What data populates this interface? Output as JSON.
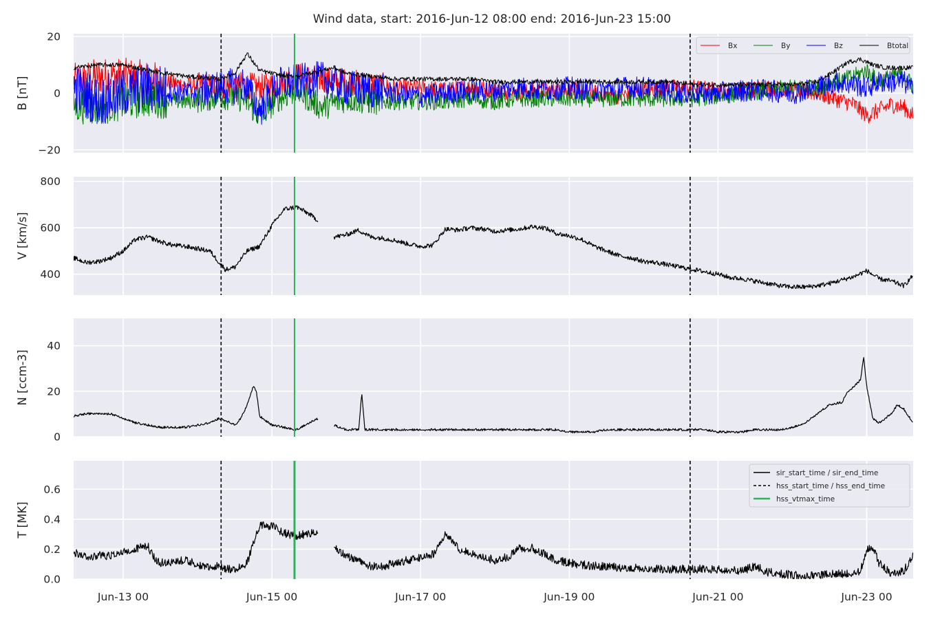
{
  "title": "Wind data, start: 2016-Jun-12 08:00  end: 2016-Jun-23 15:00",
  "chart_data": {
    "type": "line",
    "title": "Wind data, start: 2016-Jun-12 08:00  end: 2016-Jun-23 15:00",
    "x_range_hours_from_start": [
      0,
      271
    ],
    "x_tick_labels": [
      "Jun-13 00",
      "Jun-15 00",
      "Jun-17 00",
      "Jun-19 00",
      "Jun-21 00",
      "Jun-23 00"
    ],
    "x_tick_hours": [
      16,
      64,
      112,
      160,
      208,
      256
    ],
    "grid": true,
    "background": "#eaeaf2",
    "event_lines": {
      "hss_start_end_dashed_hours": [
        47.6,
        199.0
      ],
      "hss_vtmax_hours": 71.3,
      "hss_vtmax_color": "#2cb35c",
      "dashed_color": "#000000"
    },
    "panels": [
      {
        "id": "B",
        "ylabel": "B [nT]",
        "ylim": [
          -21,
          21
        ],
        "yticks": [
          -20,
          0,
          20
        ],
        "ytick_labels": [
          "−20",
          "0",
          "20"
        ],
        "legend": "top-right",
        "series": [
          {
            "name": "Bx",
            "color": "#ff0000",
            "x": [
              0,
              8,
              16,
              24,
              36,
              47,
              55,
              60,
              66,
              72,
              80,
              88,
              96,
              104,
              112,
              120,
              128,
              136,
              144,
              152,
              160,
              168,
              176,
              184,
              192,
              200,
              208,
              216,
              224,
              232,
              240,
              246,
              252,
              256,
              260,
              264,
              268,
              271
            ],
            "y": [
              4,
              6,
              6,
              5,
              3,
              2,
              3,
              2,
              3,
              6,
              5,
              4,
              3,
              2,
              2,
              1,
              2,
              1,
              0,
              1,
              1,
              0,
              -1,
              1,
              2,
              2,
              1,
              1,
              2,
              1,
              0,
              -2,
              -4,
              -8,
              -6,
              -4,
              -5,
              -8
            ]
          },
          {
            "name": "By",
            "color": "#008000",
            "x": [
              0,
              8,
              16,
              24,
              36,
              47,
              55,
              60,
              66,
              72,
              80,
              88,
              96,
              104,
              112,
              120,
              128,
              136,
              144,
              152,
              160,
              168,
              176,
              184,
              192,
              200,
              208,
              216,
              224,
              232,
              240,
              246,
              252,
              256,
              260,
              264,
              268,
              271
            ],
            "y": [
              -4,
              -5,
              -3,
              -2,
              -3,
              -1,
              -2,
              -8,
              -2,
              1,
              -5,
              -2,
              -3,
              -3,
              -3,
              -3,
              -2,
              -3,
              -2,
              -2,
              -2,
              -2,
              -2,
              -2,
              -2,
              -2,
              -1,
              0,
              1,
              2,
              2,
              4,
              6,
              8,
              4,
              6,
              7,
              2
            ]
          },
          {
            "name": "Bz",
            "color": "#0000ff",
            "x": [
              0,
              8,
              16,
              24,
              36,
              47,
              55,
              60,
              66,
              72,
              80,
              88,
              96,
              104,
              112,
              120,
              128,
              136,
              144,
              152,
              160,
              168,
              176,
              184,
              192,
              200,
              208,
              216,
              224,
              232,
              240,
              246,
              252,
              256,
              260,
              264,
              268,
              271
            ],
            "y": [
              2,
              -3,
              0,
              2,
              0,
              2,
              3,
              -6,
              3,
              4,
              5,
              2,
              1,
              0,
              -1,
              0,
              1,
              1,
              2,
              1,
              2,
              1,
              2,
              2,
              1,
              0,
              0,
              1,
              1,
              0,
              2,
              4,
              3,
              2,
              4,
              4,
              4,
              1
            ]
          },
          {
            "name": "Btotal",
            "color": "#000000",
            "x": [
              0,
              8,
              16,
              24,
              36,
              47,
              52,
              56,
              60,
              64,
              68,
              72,
              80,
              84,
              88,
              96,
              104,
              112,
              120,
              128,
              136,
              144,
              152,
              160,
              168,
              176,
              184,
              192,
              200,
              208,
              216,
              224,
              232,
              240,
              246,
              250,
              254,
              258,
              262,
              266,
              271
            ],
            "y": [
              9,
              10,
              10,
              8,
              6,
              5,
              7,
              14,
              8,
              7,
              6,
              6,
              8,
              9,
              7,
              6,
              5,
              5,
              5,
              5,
              4,
              4,
              4,
              4,
              4,
              4,
              4,
              4,
              3,
              3,
              3,
              3,
              3,
              4,
              8,
              11,
              12,
              10,
              9,
              9,
              9
            ]
          }
        ]
      },
      {
        "id": "V",
        "ylabel": "V [km/s]",
        "ylim": [
          310,
          820
        ],
        "yticks": [
          400,
          600,
          800
        ],
        "ytick_labels": [
          "400",
          "600",
          "800"
        ],
        "series": [
          {
            "name": "",
            "color": "#000000",
            "x": [
              0,
              4,
              8,
              12,
              16,
              20,
              24,
              28,
              32,
              36,
              40,
              44,
              47,
              49,
              52,
              56,
              60,
              64,
              68,
              72,
              76,
              79,
              81,
              84,
              88,
              92,
              96,
              100,
              104,
              108,
              112,
              116,
              120,
              124,
              128,
              132,
              136,
              140,
              144,
              148,
              152,
              156,
              160,
              164,
              168,
              172,
              176,
              180,
              184,
              188,
              192,
              196,
              200,
              204,
              208,
              212,
              216,
              220,
              224,
              228,
              232,
              236,
              240,
              244,
              248,
              252,
              256,
              260,
              264,
              268,
              271
            ],
            "y": [
              470,
              450,
              455,
              470,
              500,
              550,
              560,
              540,
              525,
              520,
              510,
              500,
              450,
              420,
              430,
              500,
              520,
              610,
              680,
              690,
              660,
              630,
              null,
              560,
              570,
              590,
              560,
              555,
              545,
              530,
              520,
              525,
              595,
              590,
              600,
              595,
              585,
              590,
              595,
              605,
              600,
              575,
              565,
              550,
              520,
              500,
              480,
              470,
              455,
              450,
              440,
              430,
              420,
              410,
              400,
              385,
              380,
              370,
              360,
              350,
              345,
              345,
              350,
              360,
              375,
              390,
              415,
              380,
              370,
              350,
              395
            ]
          }
        ]
      },
      {
        "id": "N",
        "ylabel": "N [ccm-3]",
        "ylim": [
          0,
          52
        ],
        "yticks": [
          0,
          20,
          40
        ],
        "ytick_labels": [
          "0",
          "20",
          "40"
        ],
        "series": [
          {
            "name": "",
            "color": "#000000",
            "x": [
              0,
              4,
              8,
              12,
              16,
              20,
              24,
              28,
              32,
              36,
              40,
              44,
              47,
              49,
              52,
              54,
              56,
              58,
              59,
              60,
              64,
              68,
              72,
              76,
              79,
              81,
              84,
              88,
              92,
              93,
              94,
              96,
              100,
              104,
              108,
              112,
              116,
              120,
              124,
              128,
              132,
              136,
              140,
              144,
              148,
              152,
              156,
              160,
              164,
              168,
              172,
              176,
              180,
              184,
              188,
              192,
              196,
              200,
              204,
              208,
              212,
              216,
              220,
              224,
              228,
              232,
              236,
              240,
              244,
              248,
              250,
              252,
              254,
              255,
              256,
              258,
              260,
              262,
              264,
              266,
              268,
              271
            ],
            "y": [
              9,
              10,
              10,
              10,
              8,
              6,
              5,
              4,
              4,
              4,
              5,
              6,
              8,
              7,
              5,
              8,
              14,
              22,
              20,
              9,
              5,
              4,
              3,
              6,
              8,
              null,
              5,
              3,
              3,
              19,
              3,
              3,
              3,
              3,
              3,
              3,
              3,
              3,
              3,
              3,
              3,
              3,
              3,
              3,
              3,
              3,
              3,
              2,
              2,
              2,
              3,
              3,
              3,
              3,
              3,
              3,
              3,
              3,
              3,
              2,
              2,
              2,
              3,
              3,
              3,
              4,
              6,
              10,
              14,
              15,
              20,
              22,
              25,
              35,
              22,
              8,
              6,
              8,
              10,
              14,
              12,
              6
            ]
          }
        ]
      },
      {
        "id": "T",
        "ylabel": "T [MK]",
        "ylim": [
          0,
          0.79
        ],
        "yticks": [
          0.0,
          0.2,
          0.4,
          0.6
        ],
        "ytick_labels": [
          "0.0",
          "0.2",
          "0.4",
          "0.6"
        ],
        "legend": "top-right",
        "legend_entries": [
          {
            "label": "sir_start_time / sir_end_time",
            "style": "solid",
            "color": "#000000"
          },
          {
            "label": "hss_start_time / hss_end_time",
            "style": "dashed",
            "color": "#000000"
          },
          {
            "label": "hss_vtmax_time",
            "style": "solid",
            "color": "#2cb35c"
          }
        ],
        "series": [
          {
            "name": "",
            "color": "#000000",
            "x": [
              0,
              4,
              8,
              12,
              16,
              20,
              24,
              26,
              28,
              32,
              36,
              40,
              44,
              47,
              49,
              52,
              56,
              59,
              60,
              64,
              68,
              72,
              76,
              79,
              81,
              84,
              88,
              92,
              96,
              100,
              104,
              108,
              112,
              116,
              120,
              124,
              128,
              132,
              136,
              140,
              144,
              148,
              152,
              156,
              160,
              164,
              168,
              172,
              176,
              180,
              184,
              188,
              192,
              196,
              200,
              204,
              208,
              210,
              212,
              216,
              220,
              224,
              228,
              232,
              236,
              240,
              244,
              248,
              252,
              254,
              256,
              258,
              260,
              264,
              268,
              271
            ],
            "y": [
              0.17,
              0.14,
              0.15,
              0.15,
              0.18,
              0.2,
              0.21,
              0.14,
              0.1,
              0.11,
              0.12,
              0.09,
              0.08,
              0.08,
              0.06,
              0.06,
              0.1,
              0.3,
              0.35,
              0.35,
              0.3,
              0.28,
              0.3,
              0.32,
              null,
              0.2,
              0.15,
              0.12,
              0.08,
              0.08,
              0.1,
              0.12,
              0.14,
              0.16,
              0.3,
              0.2,
              0.17,
              0.14,
              0.12,
              0.14,
              0.2,
              0.2,
              0.16,
              0.12,
              0.1,
              0.09,
              0.08,
              0.08,
              0.07,
              0.07,
              0.06,
              0.06,
              0.06,
              0.06,
              0.06,
              0.06,
              0.06,
              0.05,
              0.05,
              0.05,
              0.08,
              0.04,
              0.03,
              0.02,
              0.02,
              0.02,
              0.03,
              0.03,
              0.04,
              0.05,
              0.2,
              0.2,
              0.1,
              0.03,
              0.05,
              0.15
            ]
          }
        ]
      }
    ]
  }
}
